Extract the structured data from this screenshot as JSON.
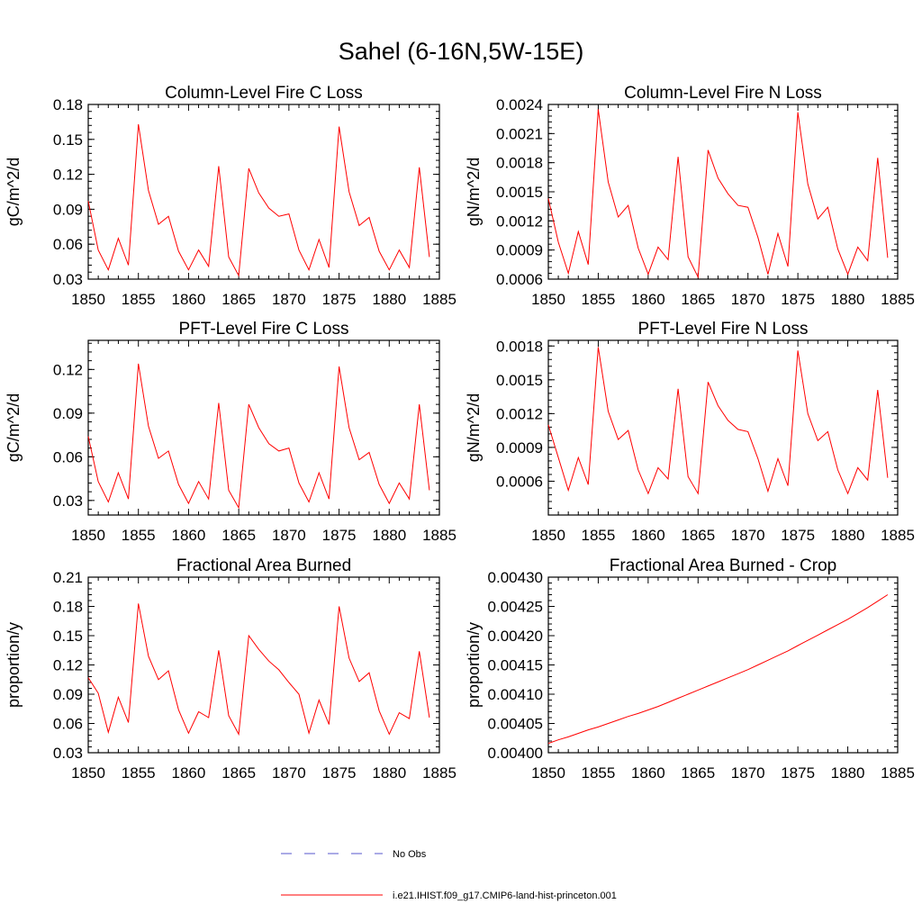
{
  "figure": {
    "title": "Sahel (6-16N,5W-15E)"
  },
  "legend": {
    "items": [
      {
        "label": "No Obs",
        "color": "#5555cc",
        "dash": true
      },
      {
        "label": "i.e21.IHIST.f09_g17.CMIP6-land-hist-princeton.001",
        "color": "#ff0000",
        "dash": false
      }
    ]
  },
  "chart_data": [
    {
      "type": "line",
      "title": "Column-Level Fire C Loss",
      "ylabel": "gC/m^2/d",
      "xlim": [
        1850,
        1885
      ],
      "xticks": [
        "1850",
        "1855",
        "1860",
        "1865",
        "1870",
        "1875",
        "1880",
        "1885"
      ],
      "ylim": [
        0.03,
        0.18
      ],
      "yticks": [
        "0.03",
        "0.06",
        "0.09",
        "0.12",
        "0.15",
        "0.18"
      ],
      "x": [
        1850,
        1851,
        1852,
        1853,
        1854,
        1855,
        1856,
        1857,
        1858,
        1859,
        1860,
        1861,
        1862,
        1863,
        1864,
        1865,
        1866,
        1867,
        1868,
        1869,
        1870,
        1871,
        1872,
        1873,
        1874,
        1875,
        1876,
        1877,
        1878,
        1879,
        1880,
        1881,
        1882,
        1883,
        1884
      ],
      "series": [
        {
          "values": [
            0.097,
            0.055,
            0.038,
            0.065,
            0.042,
            0.163,
            0.106,
            0.077,
            0.084,
            0.054,
            0.038,
            0.055,
            0.041,
            0.127,
            0.049,
            0.033,
            0.125,
            0.104,
            0.091,
            0.084,
            0.086,
            0.055,
            0.038,
            0.064,
            0.04,
            0.161,
            0.105,
            0.076,
            0.083,
            0.054,
            0.038,
            0.055,
            0.04,
            0.126,
            0.049
          ],
          "color": "#ff0000"
        }
      ]
    },
    {
      "type": "line",
      "title": "Column-Level Fire N Loss",
      "ylabel": "gN/m^2/d",
      "xlim": [
        1850,
        1885
      ],
      "xticks": [
        "1850",
        "1855",
        "1860",
        "1865",
        "1870",
        "1875",
        "1880",
        "1885"
      ],
      "ylim": [
        0.0006,
        0.0024
      ],
      "yticks": [
        "0.0006",
        "0.0009",
        "0.0012",
        "0.0015",
        "0.0018",
        "0.0021",
        "0.0024"
      ],
      "x": [
        1850,
        1851,
        1852,
        1853,
        1854,
        1855,
        1856,
        1857,
        1858,
        1859,
        1860,
        1861,
        1862,
        1863,
        1864,
        1865,
        1866,
        1867,
        1868,
        1869,
        1870,
        1871,
        1872,
        1873,
        1874,
        1875,
        1876,
        1877,
        1878,
        1879,
        1880,
        1881,
        1882,
        1883,
        1884
      ],
      "series": [
        {
          "values": [
            0.00143,
            0.00098,
            0.00066,
            0.00109,
            0.00075,
            0.00235,
            0.0016,
            0.00124,
            0.00136,
            0.00092,
            0.00065,
            0.00093,
            0.0008,
            0.00186,
            0.00083,
            0.00062,
            0.00193,
            0.00164,
            0.00148,
            0.00136,
            0.00134,
            0.00103,
            0.00065,
            0.00107,
            0.00073,
            0.00232,
            0.00158,
            0.00122,
            0.00134,
            0.00091,
            0.00065,
            0.00093,
            0.00079,
            0.00185,
            0.00082
          ],
          "color": "#ff0000"
        }
      ]
    },
    {
      "type": "line",
      "title": "PFT-Level Fire C Loss",
      "ylabel": "gC/m^2/d",
      "xlim": [
        1850,
        1885
      ],
      "xticks": [
        "1850",
        "1855",
        "1860",
        "1865",
        "1870",
        "1875",
        "1880",
        "1885"
      ],
      "ylim": [
        0.02,
        0.14
      ],
      "yticks": [
        "0.03",
        "0.06",
        "0.09",
        "0.12"
      ],
      "x": [
        1850,
        1851,
        1852,
        1853,
        1854,
        1855,
        1856,
        1857,
        1858,
        1859,
        1860,
        1861,
        1862,
        1863,
        1864,
        1865,
        1866,
        1867,
        1868,
        1869,
        1870,
        1871,
        1872,
        1873,
        1874,
        1875,
        1876,
        1877,
        1878,
        1879,
        1880,
        1881,
        1882,
        1883,
        1884
      ],
      "series": [
        {
          "values": [
            0.074,
            0.043,
            0.029,
            0.049,
            0.031,
            0.124,
            0.081,
            0.059,
            0.064,
            0.041,
            0.028,
            0.043,
            0.031,
            0.097,
            0.037,
            0.025,
            0.096,
            0.08,
            0.069,
            0.064,
            0.066,
            0.042,
            0.029,
            0.049,
            0.031,
            0.122,
            0.08,
            0.058,
            0.063,
            0.041,
            0.028,
            0.042,
            0.031,
            0.096,
            0.037
          ],
          "color": "#ff0000"
        }
      ]
    },
    {
      "type": "line",
      "title": "PFT-Level Fire N Loss",
      "ylabel": "gN/m^2/d",
      "xlim": [
        1850,
        1885
      ],
      "xticks": [
        "1850",
        "1855",
        "1860",
        "1865",
        "1870",
        "1875",
        "1880",
        "1885"
      ],
      "ylim": [
        0.0003,
        0.00185
      ],
      "yticks": [
        "0.0006",
        "0.0009",
        "0.0012",
        "0.0015",
        "0.0018"
      ],
      "x": [
        1850,
        1851,
        1852,
        1853,
        1854,
        1855,
        1856,
        1857,
        1858,
        1859,
        1860,
        1861,
        1862,
        1863,
        1864,
        1865,
        1866,
        1867,
        1868,
        1869,
        1870,
        1871,
        1872,
        1873,
        1874,
        1875,
        1876,
        1877,
        1878,
        1879,
        1880,
        1881,
        1882,
        1883,
        1884
      ],
      "series": [
        {
          "values": [
            0.0011,
            0.00081,
            0.00052,
            0.00081,
            0.00057,
            0.00179,
            0.00122,
            0.00097,
            0.00105,
            0.0007,
            0.00049,
            0.00072,
            0.00062,
            0.00142,
            0.00064,
            0.00049,
            0.00148,
            0.00127,
            0.00114,
            0.00106,
            0.00104,
            0.0008,
            0.00051,
            0.0008,
            0.00056,
            0.00176,
            0.0012,
            0.00096,
            0.00104,
            0.0007,
            0.00049,
            0.00072,
            0.00061,
            0.00141,
            0.00063
          ],
          "color": "#ff0000"
        }
      ]
    },
    {
      "type": "line",
      "title": "Fractional Area Burned",
      "ylabel": "proportion/y",
      "xlim": [
        1850,
        1885
      ],
      "xticks": [
        "1850",
        "1855",
        "1860",
        "1865",
        "1870",
        "1875",
        "1880",
        "1885"
      ],
      "ylim": [
        0.03,
        0.21
      ],
      "yticks": [
        "0.03",
        "0.06",
        "0.09",
        "0.12",
        "0.15",
        "0.18",
        "0.21"
      ],
      "x": [
        1850,
        1851,
        1852,
        1853,
        1854,
        1855,
        1856,
        1857,
        1858,
        1859,
        1860,
        1861,
        1862,
        1863,
        1864,
        1865,
        1866,
        1867,
        1868,
        1869,
        1870,
        1871,
        1872,
        1873,
        1874,
        1875,
        1876,
        1877,
        1878,
        1879,
        1880,
        1881,
        1882,
        1883,
        1884
      ],
      "series": [
        {
          "values": [
            0.107,
            0.091,
            0.051,
            0.087,
            0.061,
            0.183,
            0.129,
            0.105,
            0.114,
            0.074,
            0.05,
            0.072,
            0.066,
            0.135,
            0.068,
            0.049,
            0.15,
            0.136,
            0.124,
            0.115,
            0.102,
            0.09,
            0.05,
            0.084,
            0.059,
            0.18,
            0.127,
            0.103,
            0.112,
            0.073,
            0.049,
            0.071,
            0.065,
            0.134,
            0.066
          ],
          "color": "#ff0000"
        }
      ]
    },
    {
      "type": "line",
      "title": "Fractional Area Burned - Crop",
      "ylabel": "proportion/y",
      "xlim": [
        1850,
        1885
      ],
      "xticks": [
        "1850",
        "1855",
        "1860",
        "1865",
        "1870",
        "1875",
        "1880",
        "1885"
      ],
      "ylim": [
        0.004,
        0.0043
      ],
      "yticks": [
        "0.00400",
        "0.00405",
        "0.00410",
        "0.00415",
        "0.00420",
        "0.00425",
        "0.00430"
      ],
      "x": [
        1850,
        1851,
        1852,
        1853,
        1854,
        1855,
        1856,
        1857,
        1858,
        1859,
        1860,
        1861,
        1862,
        1863,
        1864,
        1865,
        1866,
        1867,
        1868,
        1869,
        1870,
        1871,
        1872,
        1873,
        1874,
        1875,
        1876,
        1877,
        1878,
        1879,
        1880,
        1881,
        1882,
        1883,
        1884
      ],
      "series": [
        {
          "values": [
            0.004016,
            0.004022,
            0.004027,
            0.004033,
            0.004039,
            0.004044,
            0.00405,
            0.004056,
            0.004062,
            0.004067,
            0.004073,
            0.004079,
            0.004086,
            0.004093,
            0.0041,
            0.004107,
            0.004114,
            0.004121,
            0.004128,
            0.004135,
            0.004142,
            0.00415,
            0.004158,
            0.004166,
            0.004174,
            0.004183,
            0.004192,
            0.004201,
            0.00421,
            0.004219,
            0.004228,
            0.004238,
            0.004248,
            0.004259,
            0.00427
          ],
          "color": "#ff0000"
        }
      ]
    }
  ]
}
